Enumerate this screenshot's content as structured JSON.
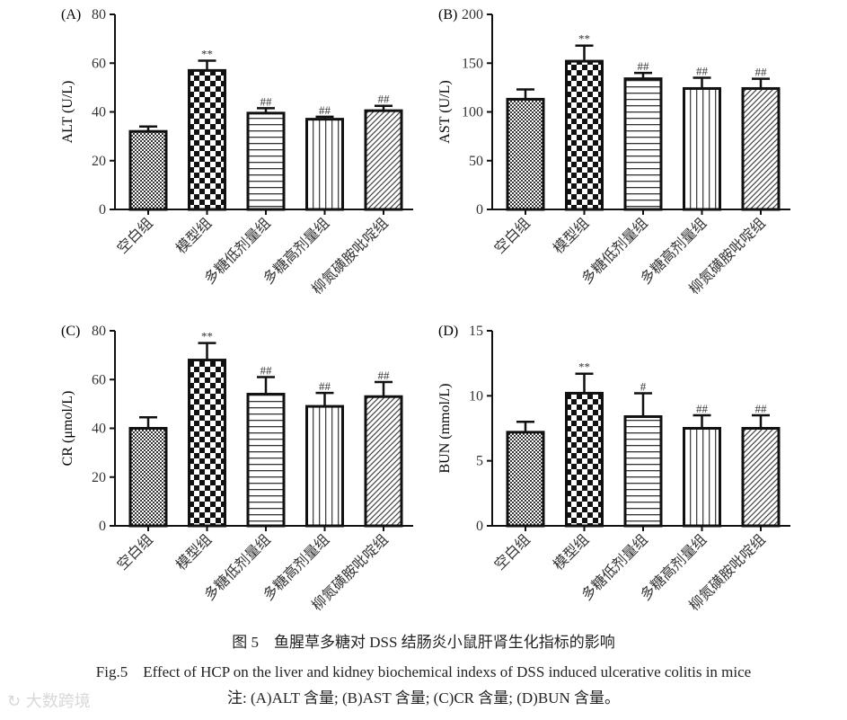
{
  "chart_data": [
    {
      "type": "bar",
      "panel": "(A)",
      "ylabel": "ALT (U/L)",
      "ylim": [
        0,
        80
      ],
      "yticks": [
        0,
        20,
        40,
        60,
        80
      ],
      "categories": [
        "空白组",
        "模型组",
        "多糖低剂量组",
        "多糖高剂量组",
        "柳氮磺胺吡啶组"
      ],
      "values": [
        32,
        57,
        39.5,
        37,
        40.5
      ],
      "errors": [
        2,
        4,
        2,
        1,
        2
      ],
      "annotations": [
        "",
        "**",
        "##",
        "##",
        "##"
      ]
    },
    {
      "type": "bar",
      "panel": "(B)",
      "ylabel": "AST (U/L)",
      "ylim": [
        0,
        200
      ],
      "yticks": [
        0,
        50,
        100,
        150,
        200
      ],
      "categories": [
        "空白组",
        "模型组",
        "多糖低剂量组",
        "多糖高剂量组",
        "柳氮磺胺吡啶组"
      ],
      "values": [
        113,
        152,
        134,
        124,
        124
      ],
      "errors": [
        10,
        16,
        6,
        11,
        10
      ],
      "annotations": [
        "",
        "**",
        "##",
        "##",
        "##"
      ]
    },
    {
      "type": "bar",
      "panel": "(C)",
      "ylabel": "CR (μmol/L)",
      "ylim": [
        0,
        80
      ],
      "yticks": [
        0,
        20,
        40,
        60,
        80
      ],
      "categories": [
        "空白组",
        "模型组",
        "多糖低剂量组",
        "多糖高剂量组",
        "柳氮磺胺吡啶组"
      ],
      "values": [
        40,
        68,
        54,
        49,
        53
      ],
      "errors": [
        4.5,
        7,
        7,
        5.5,
        6
      ],
      "annotations": [
        "",
        "**",
        "##",
        "##",
        "##"
      ]
    },
    {
      "type": "bar",
      "panel": "(D)",
      "ylabel": "BUN (mmol/L)",
      "ylim": [
        0,
        15
      ],
      "yticks": [
        0,
        5,
        10,
        15
      ],
      "categories": [
        "空白组",
        "模型组",
        "多糖低剂量组",
        "多糖高剂量组",
        "柳氮磺胺吡啶组"
      ],
      "values": [
        7.2,
        10.2,
        8.4,
        7.5,
        7.5
      ],
      "errors": [
        0.8,
        1.5,
        1.8,
        1,
        1
      ],
      "annotations": [
        "",
        "**",
        "#",
        "##",
        "##"
      ]
    }
  ],
  "caption": {
    "cn": "图 5　鱼腥草多糖对 DSS 结肠炎小鼠肝肾生化指标的影响",
    "en": "Fig.5　Effect of HCP on the liver and kidney biochemical indexs of DSS induced ulcerative colitis in mice",
    "note": "注: (A)ALT 含量; (B)AST 含量; (C)CR 含量; (D)BUN 含量。"
  },
  "watermark": "大数跨境"
}
